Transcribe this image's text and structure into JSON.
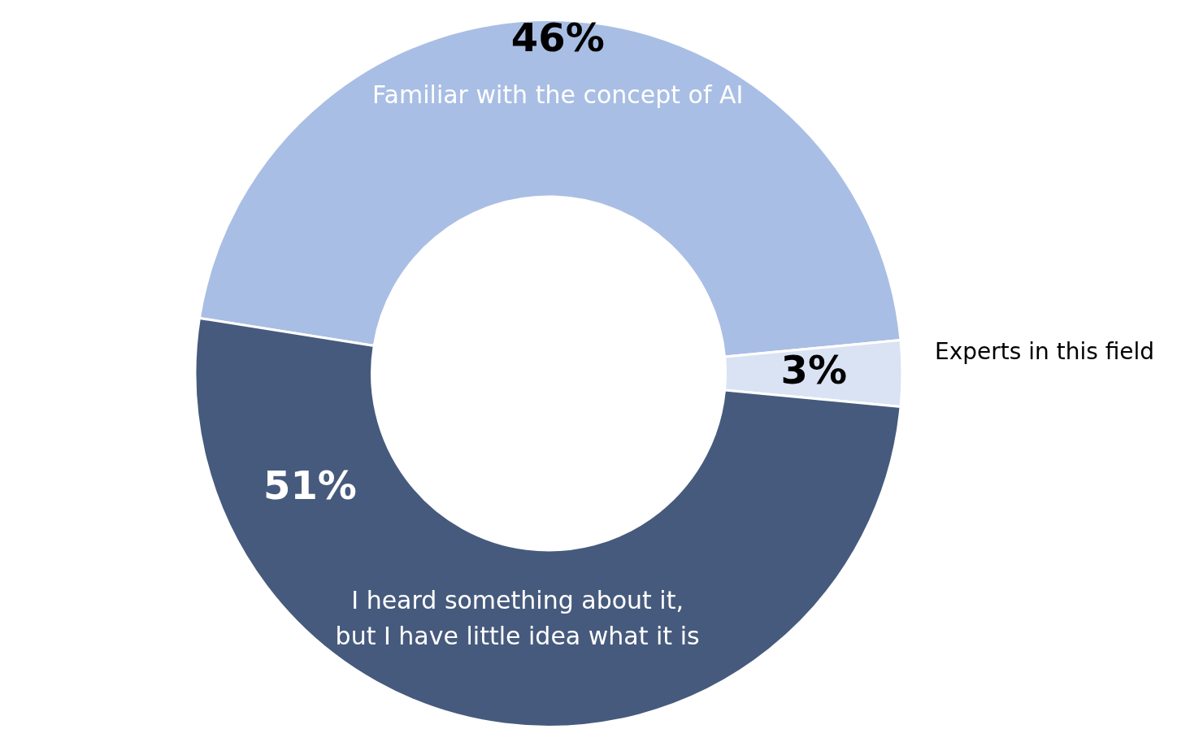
{
  "chart_data": {
    "type": "donut",
    "categories": [
      "Familiar with the concept of AI",
      "Experts in this field",
      "I heard something about it,\nbut I have little idea what it is"
    ],
    "values": [
      46,
      3,
      51
    ],
    "colors": [
      "#a9bee4",
      "#dae3f3",
      "#465a7d"
    ],
    "value_labels": [
      "46%",
      "3%",
      "51%"
    ],
    "legend": false
  }
}
